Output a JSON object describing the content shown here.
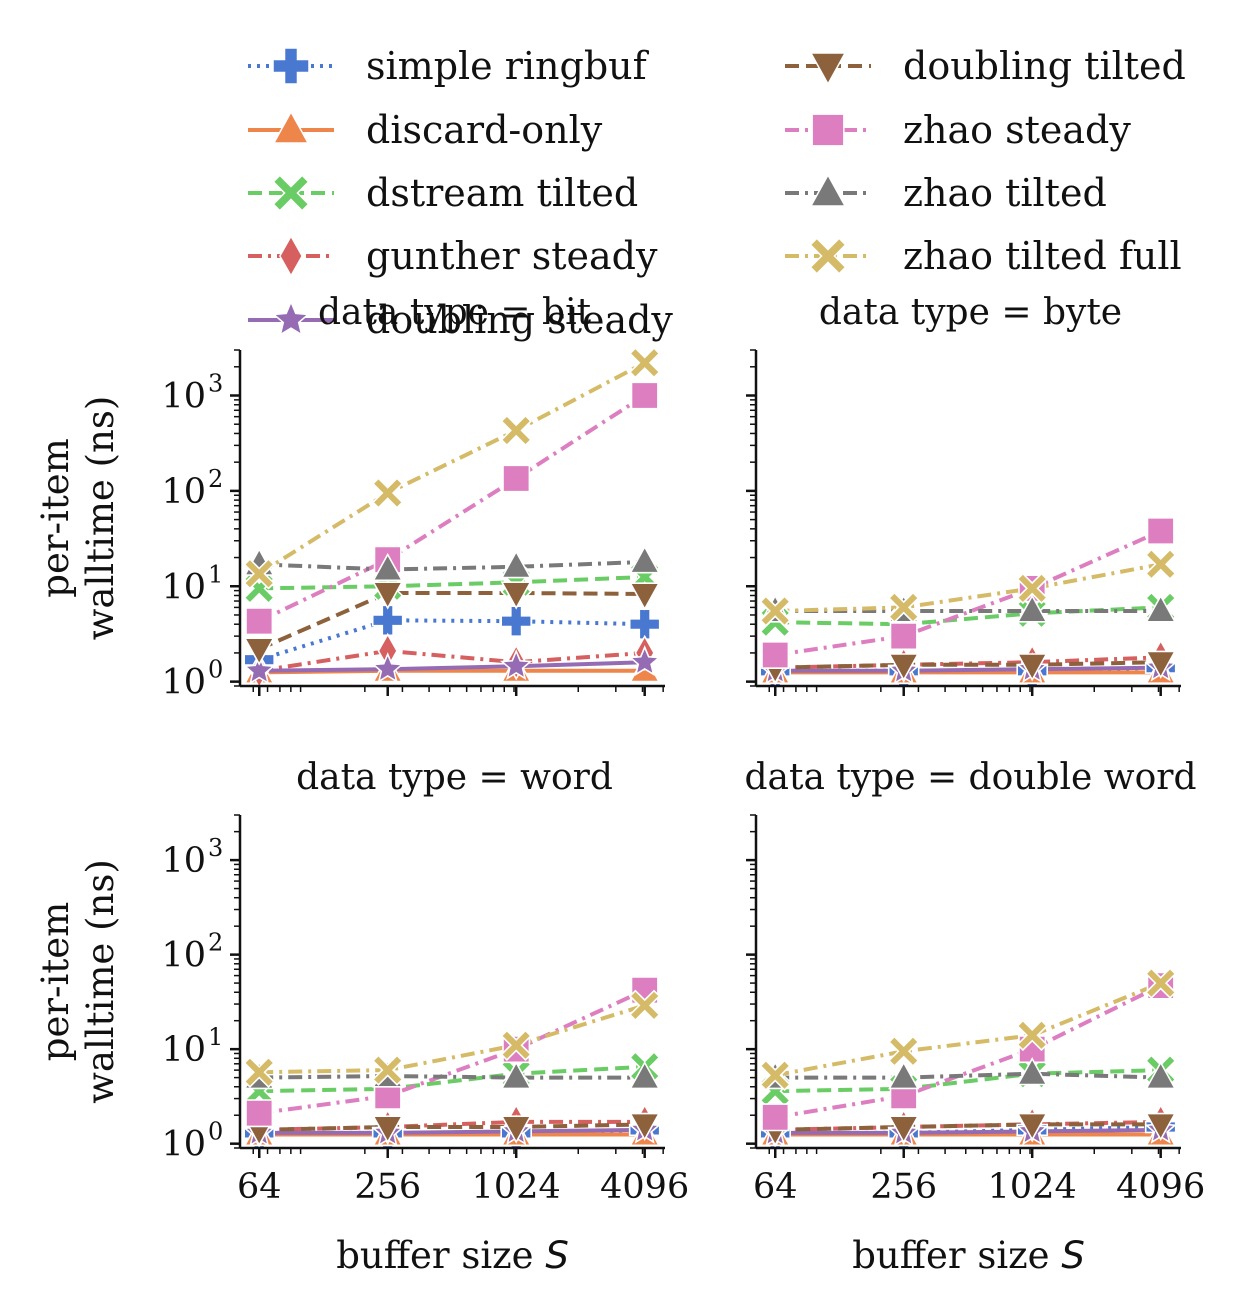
{
  "chart_data": {
    "type": "line",
    "xlabel": "buffer size S",
    "ylabel": "per-item walltime (ns)",
    "x": [
      64,
      256,
      1024,
      4096
    ],
    "x_tick_labels": [
      "64",
      "256",
      "1024",
      "4096"
    ],
    "y_scale": "log",
    "ylim": [
      0.9,
      3000
    ],
    "y_tick_labels": [
      "10",
      "10",
      "10",
      "10"
    ],
    "y_tick_exponents": [
      "0",
      "1",
      "2",
      "3"
    ],
    "legend_placement": "top",
    "series_styles": [
      {
        "name": "simple ringbuf",
        "color": "#4878d0",
        "marker": "plus",
        "dash": "dot"
      },
      {
        "name": "discard-only",
        "color": "#ee854a",
        "marker": "triangle-up",
        "dash": "solid"
      },
      {
        "name": "dstream tilted",
        "color": "#6acc64",
        "marker": "x",
        "dash": "dash"
      },
      {
        "name": "gunther steady",
        "color": "#d65f5f",
        "marker": "diamond",
        "dash": "dashdot"
      },
      {
        "name": "doubling steady",
        "color": "#956cb4",
        "marker": "star",
        "dash": "solid"
      },
      {
        "name": "doubling tilted",
        "color": "#8c613c",
        "marker": "triangle-down",
        "dash": "dash"
      },
      {
        "name": "zhao steady",
        "color": "#dc7ec0",
        "marker": "square",
        "dash": "dashdot"
      },
      {
        "name": "zhao tilted",
        "color": "#797979",
        "marker": "triangle-up",
        "dash": "dashdot"
      },
      {
        "name": "zhao tilted full",
        "color": "#d5bb67",
        "marker": "x",
        "dash": "dashdot"
      }
    ],
    "panels": [
      {
        "title": "data type = bit",
        "series": [
          {
            "name": "simple ringbuf",
            "values": [
              1.7,
              4.4,
              4.3,
              4.0
            ]
          },
          {
            "name": "discard-only",
            "values": [
              1.25,
              1.3,
              1.3,
              1.3
            ]
          },
          {
            "name": "dstream tilted",
            "values": [
              9.5,
              10.0,
              11.0,
              12.5
            ]
          },
          {
            "name": "gunther steady",
            "values": [
              1.3,
              2.1,
              1.6,
              2.0
            ]
          },
          {
            "name": "doubling steady",
            "values": [
              1.3,
              1.35,
              1.45,
              1.6
            ]
          },
          {
            "name": "doubling tilted",
            "values": [
              2.2,
              8.5,
              8.5,
              8.3
            ]
          },
          {
            "name": "zhao steady",
            "values": [
              4.3,
              19.0,
              135,
              1000
            ]
          },
          {
            "name": "zhao tilted",
            "values": [
              17.0,
              15.0,
              16.0,
              18.0
            ]
          },
          {
            "name": "zhao tilted full",
            "values": [
              13.5,
              95,
              430,
              2200
            ]
          }
        ]
      },
      {
        "title": "data type = byte",
        "series": [
          {
            "name": "simple ringbuf",
            "values": [
              1.3,
              1.3,
              1.3,
              1.4
            ]
          },
          {
            "name": "discard-only",
            "values": [
              1.25,
              1.25,
              1.25,
              1.25
            ]
          },
          {
            "name": "dstream tilted",
            "values": [
              4.2,
              4.0,
              5.2,
              6.0
            ]
          },
          {
            "name": "gunther steady",
            "values": [
              1.4,
              1.5,
              1.6,
              1.8
            ]
          },
          {
            "name": "doubling steady",
            "values": [
              1.3,
              1.3,
              1.35,
              1.4
            ]
          },
          {
            "name": "doubling tilted",
            "values": [
              1.4,
              1.5,
              1.5,
              1.6
            ]
          },
          {
            "name": "zhao steady",
            "values": [
              1.9,
              3.0,
              9.5,
              38
            ]
          },
          {
            "name": "zhao tilted",
            "values": [
              5.5,
              5.5,
              5.5,
              5.5
            ]
          },
          {
            "name": "zhao tilted full",
            "values": [
              5.5,
              6.0,
              9.5,
              17
            ]
          }
        ]
      },
      {
        "title": "data type = word",
        "series": [
          {
            "name": "simple ringbuf",
            "values": [
              1.3,
              1.3,
              1.3,
              1.4
            ]
          },
          {
            "name": "discard-only",
            "values": [
              1.25,
              1.25,
              1.25,
              1.25
            ]
          },
          {
            "name": "dstream tilted",
            "values": [
              3.6,
              3.8,
              5.5,
              6.5
            ]
          },
          {
            "name": "gunther steady",
            "values": [
              1.4,
              1.5,
              1.7,
              1.7
            ]
          },
          {
            "name": "doubling steady",
            "values": [
              1.3,
              1.3,
              1.35,
              1.4
            ]
          },
          {
            "name": "doubling tilted",
            "values": [
              1.4,
              1.5,
              1.5,
              1.6
            ]
          },
          {
            "name": "zhao steady",
            "values": [
              2.1,
              3.2,
              10.0,
              42
            ]
          },
          {
            "name": "zhao tilted",
            "values": [
              5.0,
              5.2,
              5.0,
              5.0
            ]
          },
          {
            "name": "zhao tilted full",
            "values": [
              5.7,
              6.0,
              11.0,
              29
            ]
          }
        ]
      },
      {
        "title": "data type = double word",
        "series": [
          {
            "name": "simple ringbuf",
            "values": [
              1.3,
              1.3,
              1.4,
              1.5
            ]
          },
          {
            "name": "discard-only",
            "values": [
              1.25,
              1.25,
              1.25,
              1.25
            ]
          },
          {
            "name": "dstream tilted",
            "values": [
              3.6,
              3.8,
              5.5,
              6.0
            ]
          },
          {
            "name": "gunther steady",
            "values": [
              1.4,
              1.5,
              1.6,
              1.7
            ]
          },
          {
            "name": "doubling steady",
            "values": [
              1.3,
              1.3,
              1.35,
              1.4
            ]
          },
          {
            "name": "doubling tilted",
            "values": [
              1.4,
              1.5,
              1.6,
              1.6
            ]
          },
          {
            "name": "zhao steady",
            "values": [
              1.9,
              3.2,
              10.0,
              47
            ]
          },
          {
            "name": "zhao tilted",
            "values": [
              5.0,
              5.0,
              5.5,
              5.0
            ]
          },
          {
            "name": "zhao tilted full",
            "values": [
              5.3,
              9.5,
              14.0,
              50
            ]
          }
        ]
      }
    ]
  }
}
